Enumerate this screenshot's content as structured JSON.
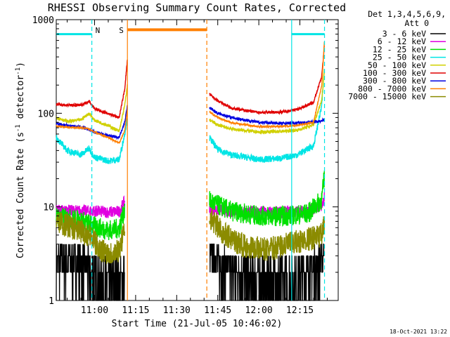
{
  "chart_data": {
    "type": "line",
    "title": "RHESSI Observing Summary Count Rates, Corrected",
    "xlabel": "Start Time (21-Jul-05 10:46:02)",
    "ylabel_main": "Corrected Count Rate (s",
    "ylabel_sup1": "-1",
    "ylabel_mid": " detector",
    "ylabel_sup2": "-1",
    "ylabel_end": ")",
    "yscale": "log",
    "ylim": [
      1,
      1000
    ],
    "xlim": [
      "10:46",
      "12:29"
    ],
    "x_ticks": [
      "11:00",
      "11:15",
      "11:30",
      "11:45",
      "12:00",
      "12:15"
    ],
    "y_ticks": [
      "1",
      "10",
      "100",
      "1000"
    ],
    "legend_header": [
      "Det 1,3,4,5,6,9,",
      "Att 0"
    ],
    "legend_position": "right",
    "timestamp": "18-Oct-2021 13:22",
    "markers": [
      {
        "label": "N",
        "color": "#00e5e5",
        "style": "dashed",
        "time": "10:59"
      },
      {
        "label": "S",
        "color": "#ff7f00",
        "style": "solid",
        "time": "11:12"
      },
      {
        "label": "",
        "color": "#ff7f00",
        "style": "dashed",
        "time": "11:41"
      },
      {
        "label": "",
        "color": "#00e5e5",
        "style": "solid",
        "time": "12:12"
      },
      {
        "label": "",
        "color": "#00e5e5",
        "style": "dashed",
        "time": "12:24"
      }
    ],
    "night_bars": [
      {
        "color": "#00e5e5",
        "from": "10:46",
        "to": "10:59",
        "value": 700
      },
      {
        "color": "#00e5e5",
        "from": "12:12",
        "to": "12:24",
        "value": 700
      }
    ],
    "saa_bar": {
      "color": "#ff7f00",
      "from": "11:12",
      "to": "11:41",
      "value": 780
    },
    "gap": [
      "11:12",
      "11:42"
    ],
    "series": [
      {
        "name": "3 - 6 keV",
        "color": "#000000",
        "noise": 0.9,
        "x": [
          "10:46",
          "10:55",
          "10:59",
          "11:02",
          "11:06",
          "11:09",
          "11:11",
          "11:42",
          "11:47",
          "11:55",
          "12:03",
          "12:11",
          "12:18",
          "12:23",
          "12:24"
        ],
        "values": [
          2.7,
          2.6,
          2.0,
          1.6,
          1.5,
          1.6,
          1.9,
          3.2,
          2.4,
          1.8,
          1.6,
          1.7,
          2.0,
          2.8,
          3.8
        ]
      },
      {
        "name": "6 - 12 keV",
        "color": "#e000e0",
        "noise": 0.15,
        "x": [
          "10:46",
          "10:55",
          "11:00",
          "11:05",
          "11:09",
          "11:11",
          "11:42",
          "11:50",
          "12:00",
          "12:10",
          "12:18",
          "12:23",
          "12:24"
        ],
        "values": [
          9.2,
          9.0,
          9.0,
          8.8,
          8.9,
          11.5,
          9.5,
          9.0,
          8.8,
          8.8,
          9.0,
          10.5,
          13.0
        ]
      },
      {
        "name": "12 - 25 keV",
        "color": "#00e000",
        "noise": 0.25,
        "x": [
          "10:46",
          "10:55",
          "11:00",
          "11:05",
          "11:09",
          "11:11",
          "11:42",
          "11:50",
          "12:00",
          "12:10",
          "12:18",
          "12:23",
          "12:24"
        ],
        "values": [
          7.8,
          7.2,
          6.2,
          5.6,
          5.9,
          9.5,
          11.5,
          9.0,
          8.0,
          8.0,
          8.5,
          12.0,
          22.0
        ]
      },
      {
        "name": "25 - 50 keV",
        "color": "#00e5e5",
        "noise": 0.08,
        "x": [
          "10:46",
          "10:50",
          "10:55",
          "10:58",
          "11:00",
          "11:05",
          "11:09",
          "11:11",
          "11:12",
          "11:42",
          "11:45",
          "11:50",
          "12:00",
          "12:08",
          "12:14",
          "12:20",
          "12:23",
          "12:24"
        ],
        "values": [
          55,
          40,
          36,
          42,
          34,
          31,
          32,
          60,
          90,
          55,
          41,
          36,
          32,
          33,
          36,
          45,
          120,
          320
        ]
      },
      {
        "name": "50 - 100 keV",
        "color": "#d0d000",
        "noise": 0.04,
        "x": [
          "10:46",
          "10:50",
          "10:55",
          "10:58",
          "11:00",
          "11:05",
          "11:09",
          "11:11",
          "11:12",
          "11:42",
          "11:45",
          "11:50",
          "12:00",
          "12:08",
          "12:14",
          "12:20",
          "12:23",
          "12:24"
        ],
        "values": [
          90,
          82,
          85,
          100,
          84,
          74,
          64,
          120,
          200,
          85,
          75,
          68,
          63,
          64,
          66,
          75,
          140,
          300
        ]
      },
      {
        "name": "100 - 300 keV",
        "color": "#e00000",
        "noise": 0.035,
        "x": [
          "10:46",
          "10:50",
          "10:55",
          "10:58",
          "11:00",
          "11:05",
          "11:09",
          "11:11",
          "11:12",
          "11:42",
          "11:45",
          "11:50",
          "12:00",
          "12:08",
          "12:14",
          "12:20",
          "12:23",
          "12:24"
        ],
        "values": [
          125,
          122,
          122,
          135,
          112,
          99,
          90,
          180,
          380,
          160,
          135,
          113,
          102,
          103,
          110,
          130,
          250,
          550
        ]
      },
      {
        "name": "300 - 800 keV",
        "color": "#0000e0",
        "noise": 0.035,
        "x": [
          "10:46",
          "10:50",
          "10:55",
          "10:58",
          "11:00",
          "11:05",
          "11:09",
          "11:11",
          "11:12",
          "11:42",
          "11:45",
          "11:50",
          "12:00",
          "12:08",
          "12:14",
          "12:18",
          "12:22",
          "12:24"
        ],
        "values": [
          78,
          74,
          71,
          67,
          63,
          58,
          55,
          80,
          120,
          115,
          100,
          90,
          80,
          78,
          79,
          80,
          82,
          85
        ]
      },
      {
        "name": "800 - 7000 keV",
        "color": "#ff7f00",
        "noise": 0.02,
        "x": [
          "10:46",
          "10:50",
          "10:55",
          "10:58",
          "11:00",
          "11:05",
          "11:09",
          "11:11",
          "11:12",
          "11:42",
          "11:45",
          "11:50",
          "12:00",
          "12:08",
          "12:14",
          "12:20",
          "12:23",
          "12:24"
        ],
        "values": [
          73,
          71,
          70,
          68,
          63,
          55,
          48,
          65,
          110,
          103,
          90,
          79,
          72,
          72,
          74,
          80,
          200,
          620
        ]
      },
      {
        "name": "7000 - 15000 keV",
        "color": "#8b8b00",
        "noise": 0.3,
        "x": [
          "10:46",
          "10:52",
          "10:58",
          "11:02",
          "11:06",
          "11:09",
          "11:11",
          "11:42",
          "11:47",
          "11:55",
          "12:03",
          "12:11",
          "12:18",
          "12:23",
          "12:24"
        ],
        "values": [
          7.0,
          6.0,
          5.0,
          3.5,
          3.2,
          3.5,
          5.5,
          8.0,
          5.2,
          3.8,
          3.5,
          4.0,
          4.5,
          5.0,
          6.5
        ]
      }
    ]
  }
}
